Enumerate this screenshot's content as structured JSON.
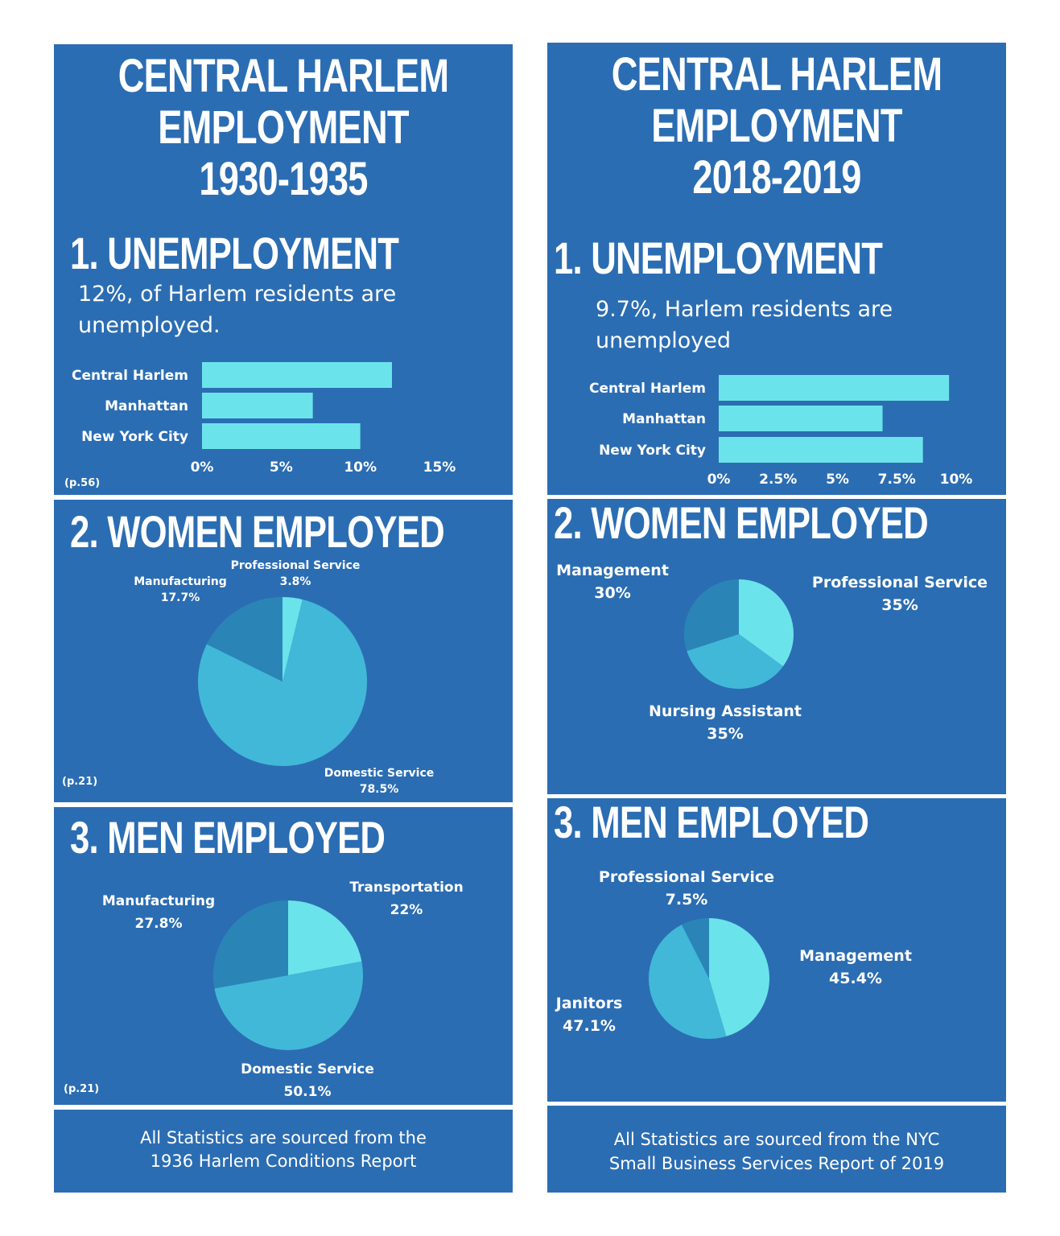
{
  "left": {
    "title_lines": [
      "CENTRAL HARLEM",
      "EMPLOYMENT",
      "1930-1935"
    ],
    "sec1_title": "1. UNEMPLOYMENT",
    "sec1_desc_lines": [
      "12%, of Harlem residents are",
      "unemployed."
    ],
    "sec1_ref": "(p.56)",
    "sec2_title": "2. WOMEN EMPLOYED",
    "sec2_ref": "(p.21)",
    "sec3_title": "3. MEN EMPLOYED",
    "sec3_ref": "(p.21)",
    "source_lines": [
      "All Statistics are sourced from the",
      "1936 Harlem Conditions Report"
    ]
  },
  "right": {
    "title_lines": [
      "CENTRAL HARLEM",
      "EMPLOYMENT",
      "2018-2019"
    ],
    "sec1_title": "1. UNEMPLOYMENT",
    "sec1_desc_lines": [
      "9.7%, Harlem residents are",
      "unemployed"
    ],
    "sec2_title": "2. WOMEN EMPLOYED",
    "sec3_title": "3. MEN EMPLOYED",
    "source_lines": [
      "All Statistics are sourced from the NYC",
      "Small Business Services Report of 2019"
    ]
  },
  "colors": {
    "panel": "#2b6db3",
    "bar": "#6be3ea",
    "slice_light": "#6be3ea",
    "slice_mid": "#41b8d8",
    "slice_dark": "#2a85b6"
  },
  "chart_data": [
    {
      "id": "unemp_1930",
      "type": "bar",
      "orientation": "horizontal",
      "categories": [
        "Central Harlem",
        "Manhattan",
        "New York City"
      ],
      "values": [
        12,
        7,
        10
      ],
      "xticks": [
        "0%",
        "5%",
        "10%",
        "15%"
      ],
      "xlim": [
        0,
        15
      ]
    },
    {
      "id": "unemp_2018",
      "type": "bar",
      "orientation": "horizontal",
      "categories": [
        "Central Harlem",
        "Manhattan",
        "New York City"
      ],
      "values": [
        9.7,
        6.9,
        8.6
      ],
      "xticks": [
        "0%",
        "2.5%",
        "5%",
        "7.5%",
        "10%"
      ],
      "xlim": [
        0,
        10
      ]
    },
    {
      "id": "women_1930",
      "type": "pie",
      "slices": [
        {
          "label": "Professional Service",
          "value_label": "3.8%",
          "value": 3.8,
          "color": "#6be3ea"
        },
        {
          "label": "Domestic Service",
          "value_label": "78.5%",
          "value": 78.5,
          "color": "#41b8d8"
        },
        {
          "label": "Manufacturing",
          "value_label": "17.7%",
          "value": 17.7,
          "color": "#2a85b6"
        }
      ]
    },
    {
      "id": "women_2018",
      "type": "pie",
      "slices": [
        {
          "label": "Professional Service",
          "value_label": "35%",
          "value": 35,
          "color": "#6be3ea"
        },
        {
          "label": "Nursing Assistant",
          "value_label": "35%",
          "value": 35,
          "color": "#41b8d8"
        },
        {
          "label": "Management",
          "value_label": "30%",
          "value": 30,
          "color": "#2a85b6"
        }
      ]
    },
    {
      "id": "men_1930",
      "type": "pie",
      "slices": [
        {
          "label": "Transportation",
          "value_label": "22%",
          "value": 22,
          "color": "#6be3ea"
        },
        {
          "label": "Domestic Service",
          "value_label": "50.1%",
          "value": 50.1,
          "color": "#41b8d8"
        },
        {
          "label": "Manufacturing",
          "value_label": "27.8%",
          "value": 27.8,
          "color": "#2a85b6"
        }
      ]
    },
    {
      "id": "men_2018",
      "type": "pie",
      "slices": [
        {
          "label": "Management",
          "value_label": "45.4%",
          "value": 45.4,
          "color": "#6be3ea"
        },
        {
          "label": "Janitors",
          "value_label": "47.1%",
          "value": 47.1,
          "color": "#41b8d8"
        },
        {
          "label": "Professional Service",
          "value_label": "7.5%",
          "value": 7.5,
          "color": "#2a85b6"
        }
      ]
    }
  ]
}
